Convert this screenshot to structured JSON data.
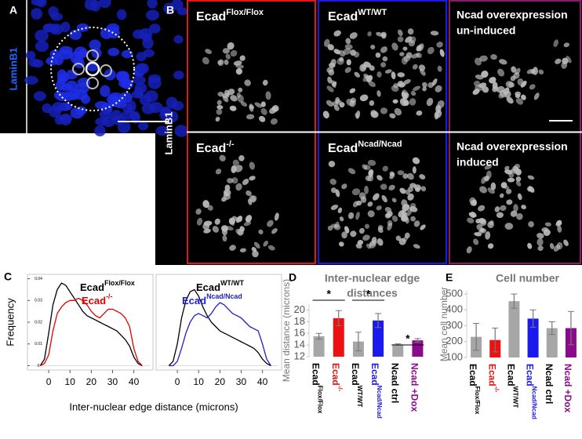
{
  "panels": {
    "A": {
      "label": "A",
      "stain": "LaminB1"
    },
    "B": {
      "label": "B",
      "stain": "LaminB1",
      "images": [
        {
          "title": {
            "base": "Ecad",
            "sup": "Flox/Flox"
          }
        },
        {
          "title": {
            "base": "Ecad",
            "sup": "WT/WT"
          }
        },
        {
          "lines": [
            "Ncad overexpression",
            "un-induced"
          ]
        },
        {
          "title": {
            "base": "Ecad",
            "sup": "-/-"
          }
        },
        {
          "title": {
            "base": "Ecad",
            "sup": "Ncad/Ncad"
          }
        },
        {
          "lines": [
            "Ncad overexpression",
            "induced"
          ]
        }
      ]
    },
    "C": {
      "label": "C",
      "xlabel": "Inter-nuclear edge distance (microns)"
    },
    "D": {
      "label": "D"
    },
    "E": {
      "label": "E"
    }
  },
  "chart_data": [
    {
      "type": "line",
      "ylabel": "Frequency",
      "x": [
        -4,
        -2,
        0,
        2,
        4,
        6,
        8,
        10,
        12,
        14,
        16,
        18,
        20,
        22,
        24,
        26,
        28,
        30,
        32,
        34,
        36,
        38,
        40,
        42,
        44
      ],
      "xlim": [
        -10,
        49
      ],
      "xticks": [
        0,
        10,
        20,
        30,
        40
      ],
      "ylim": [
        -0.002,
        0.042
      ],
      "yticks": [
        0,
        0.01,
        0.02,
        0.03,
        0.04
      ],
      "series": [
        {
          "name": {
            "base": "Ecad",
            "sup": "Flox/Flox"
          },
          "color": "#000000",
          "values": [
            0,
            0.003,
            0.015,
            0.028,
            0.035,
            0.038,
            0.037,
            0.034,
            0.031,
            0.028,
            0.025,
            0.023,
            0.022,
            0.021,
            0.02,
            0.019,
            0.018,
            0.017,
            0.016,
            0.014,
            0.012,
            0.009,
            0.004,
            0.001,
            0
          ]
        },
        {
          "name": {
            "base": "Ecad",
            "sup": "-/-"
          },
          "color": "#e00000",
          "values": [
            0,
            0.001,
            0.005,
            0.016,
            0.024,
            0.027,
            0.029,
            0.03,
            0.03,
            0.031,
            0.03,
            0.028,
            0.025,
            0.023,
            0.022,
            0.024,
            0.026,
            0.026,
            0.025,
            0.024,
            0.022,
            0.018,
            0.008,
            0.002,
            0
          ]
        }
      ]
    },
    {
      "type": "line",
      "x": [
        -4,
        -2,
        0,
        2,
        4,
        6,
        8,
        10,
        12,
        14,
        16,
        18,
        20,
        22,
        24,
        26,
        28,
        30,
        32,
        34,
        36,
        38,
        40,
        42,
        44
      ],
      "xlim": [
        -10,
        49
      ],
      "xticks": [
        0,
        10,
        20,
        30,
        40
      ],
      "ylim": [
        -0.002,
        0.042
      ],
      "series": [
        {
          "name": {
            "base": "Ecad",
            "sup": "WT/WT"
          },
          "color": "#000000",
          "values": [
            0,
            0.002,
            0.01,
            0.022,
            0.03,
            0.034,
            0.035,
            0.032,
            0.027,
            0.023,
            0.02,
            0.018,
            0.016,
            0.015,
            0.014,
            0.013,
            0.012,
            0.011,
            0.01,
            0.009,
            0.008,
            0.006,
            0.003,
            0.001,
            0
          ]
        },
        {
          "name": {
            "base": "Ecad",
            "sup": "Ncad/Ncad"
          },
          "color": "#2020c8",
          "values": [
            0,
            0,
            0.002,
            0.008,
            0.015,
            0.02,
            0.023,
            0.024,
            0.023,
            0.022,
            0.024,
            0.027,
            0.029,
            0.028,
            0.026,
            0.024,
            0.023,
            0.022,
            0.02,
            0.018,
            0.017,
            0.016,
            0.01,
            0.003,
            0
          ]
        }
      ]
    },
    {
      "type": "bar",
      "title": [
        "Inter-nuclear edge",
        "distances"
      ],
      "ylabel": "Mean distance (microns)",
      "categories": [
        {
          "base": "Ecad",
          "sup": "Flox/Flox"
        },
        {
          "base": "Ecad",
          "sup": "-/-"
        },
        {
          "base": "Ecad",
          "sup": "WT/WT"
        },
        {
          "base": "Ecad",
          "sup": "Ncad/Ncad"
        },
        {
          "base": "Ncad ctrl"
        },
        {
          "base": "Ncad +Dox"
        }
      ],
      "values": [
        15.5,
        18.6,
        14.6,
        18.2,
        14.1,
        14.8
      ],
      "errors": [
        0.5,
        1.3,
        1.6,
        1.2,
        0.1,
        0.3
      ],
      "colors": [
        "#a6a6a6",
        "#ee1111",
        "#a6a6a6",
        "#1a1aee",
        "#a6a6a6",
        "#8b0a8b"
      ],
      "label_colors": [
        "#000000",
        "#ee1111",
        "#000000",
        "#1a1aee",
        "#000000",
        "#8b0a8b"
      ],
      "ylim": [
        12,
        21
      ],
      "yticks": [
        12,
        14,
        16,
        18,
        20
      ],
      "annotations": [
        "*",
        "*",
        "*"
      ]
    },
    {
      "type": "bar",
      "title": [
        "Cell number"
      ],
      "ylabel": "Mean cell number",
      "categories": [
        {
          "base": "Ecad",
          "sup": "Flox/Flox"
        },
        {
          "base": "Ecad",
          "sup": "-/-"
        },
        {
          "base": "Ecad",
          "sup": "WT/WT"
        },
        {
          "base": "Ecad",
          "sup": "Ncad/Ncad"
        },
        {
          "base": "Ncad ctrl"
        },
        {
          "base": "Ncad +Dox"
        }
      ],
      "values": [
        230,
        210,
        455,
        345,
        285,
        285
      ],
      "errors": [
        85,
        75,
        45,
        55,
        40,
        105
      ],
      "colors": [
        "#a6a6a6",
        "#ee1111",
        "#a6a6a6",
        "#1a1aee",
        "#a6a6a6",
        "#8b0a8b"
      ],
      "label_colors": [
        "#000000",
        "#ee1111",
        "#000000",
        "#1a1aee",
        "#000000",
        "#8b0a8b"
      ],
      "ylim": [
        100,
        520
      ],
      "yticks": [
        100,
        200,
        300,
        400,
        500
      ]
    }
  ]
}
